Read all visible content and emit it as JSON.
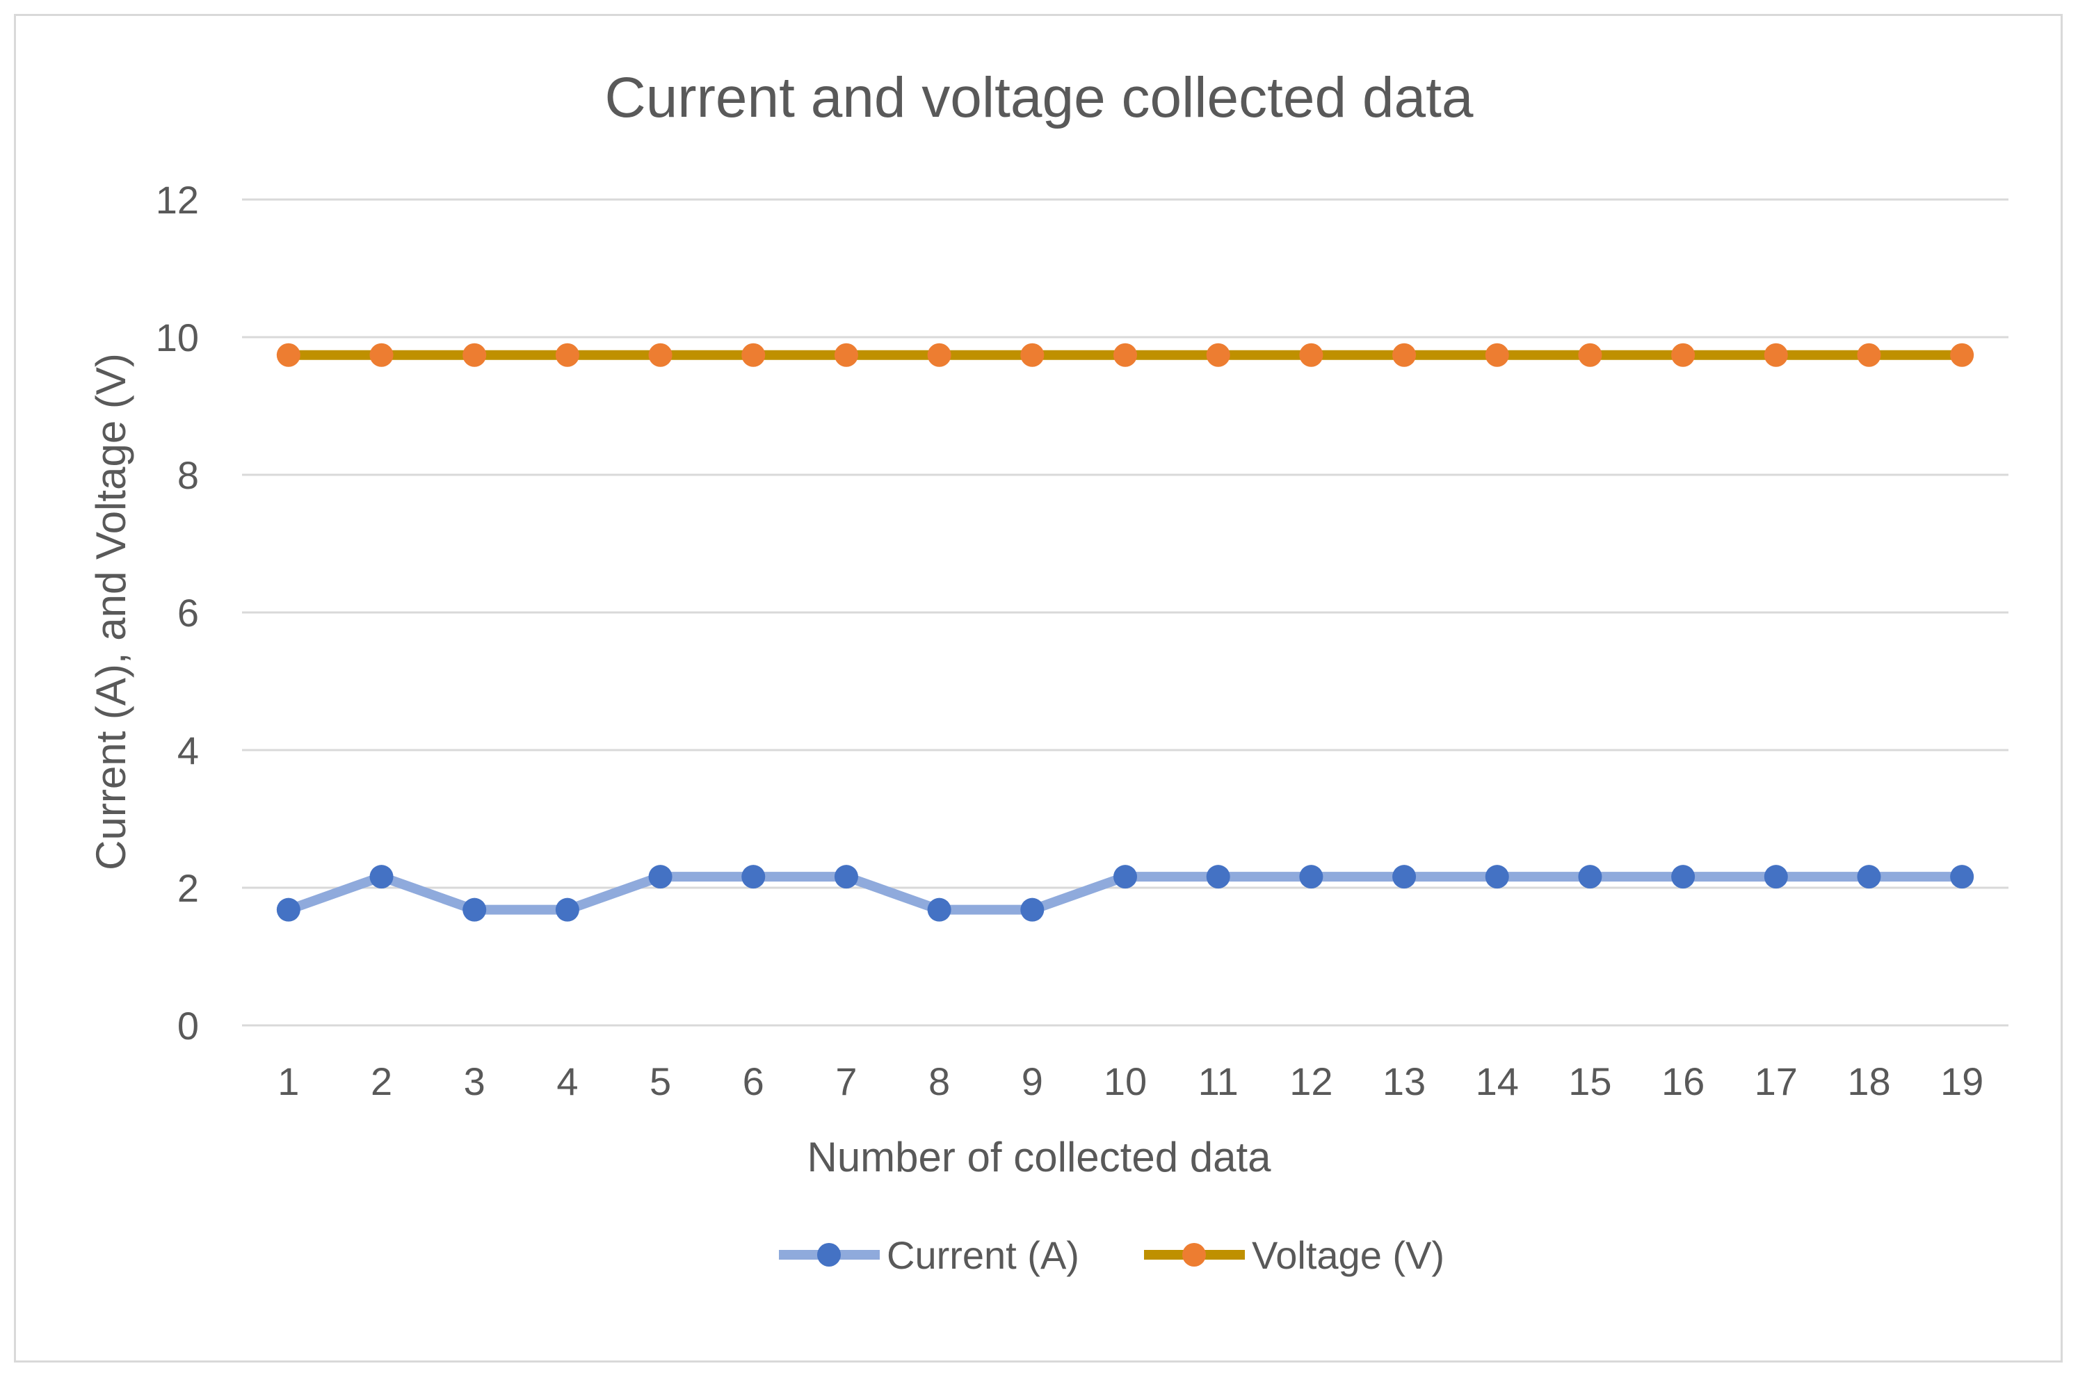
{
  "chart_data": {
    "type": "line",
    "title": "Current and voltage collected data",
    "xlabel": "Number of collected data",
    "ylabel": "Current (A), and Voltage (V)",
    "categories": [
      "1",
      "2",
      "3",
      "4",
      "5",
      "6",
      "7",
      "8",
      "9",
      "10",
      "11",
      "12",
      "13",
      "14",
      "15",
      "16",
      "17",
      "18",
      "19"
    ],
    "ylim": [
      0,
      12
    ],
    "yticks": [
      0,
      2,
      4,
      6,
      8,
      10,
      12
    ],
    "grid": true,
    "legend_position": "bottom",
    "series": [
      {
        "name": "Current (A)",
        "line_color": "#8faadc",
        "marker_color": "#4472c4",
        "values": [
          1.68,
          2.16,
          1.68,
          1.68,
          2.16,
          2.16,
          2.16,
          1.68,
          1.68,
          2.16,
          2.16,
          2.16,
          2.16,
          2.16,
          2.16,
          2.16,
          2.16,
          2.16,
          2.16
        ]
      },
      {
        "name": "Voltage (V)",
        "line_color": "#bf9000",
        "marker_color": "#ed7d31",
        "values": [
          9.74,
          9.74,
          9.74,
          9.74,
          9.74,
          9.74,
          9.74,
          9.74,
          9.74,
          9.74,
          9.74,
          9.74,
          9.74,
          9.74,
          9.74,
          9.74,
          9.74,
          9.74,
          9.74
        ]
      }
    ]
  }
}
